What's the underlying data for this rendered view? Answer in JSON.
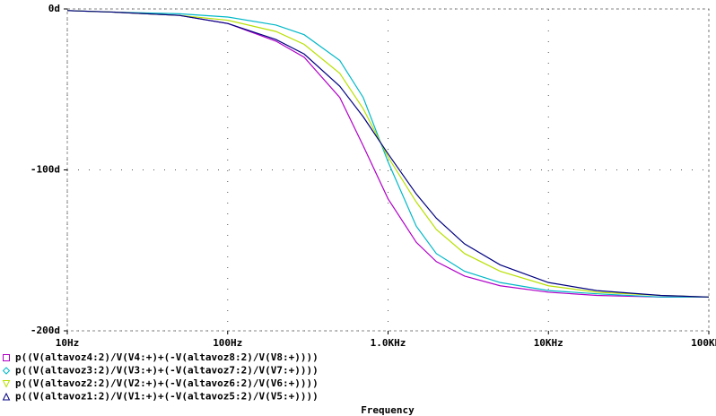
{
  "chart_data": {
    "type": "line",
    "x_label": "Frequency",
    "xscale": "log",
    "grid": true,
    "x": [
      10,
      20,
      50,
      100,
      200,
      300,
      500,
      700,
      1000,
      1500,
      2000,
      3000,
      5000,
      10000,
      20000,
      50000,
      100000
    ],
    "xlim": [
      10,
      100000
    ],
    "xticks": [
      {
        "value": 10,
        "label": "10Hz"
      },
      {
        "value": 100,
        "label": "100Hz"
      },
      {
        "value": 1000,
        "label": "1.0KHz"
      },
      {
        "value": 10000,
        "label": "10KHz"
      },
      {
        "value": 100000,
        "label": "100KHz"
      }
    ],
    "ylim": [
      -200,
      0
    ],
    "yticks": [
      {
        "value": 0,
        "label": "0d"
      },
      {
        "value": -100,
        "label": "-100d"
      },
      {
        "value": -200,
        "label": "-200d"
      }
    ],
    "series": [
      {
        "name": "p((V(altavoz4:2)/V(V4:+)+(-V(altavoz8:2)/V(V8:+))))",
        "color": "#b000c8",
        "marker": "square",
        "values": [
          -1,
          -2,
          -4,
          -9,
          -20,
          -30,
          -55,
          -85,
          -118,
          -145,
          -157,
          -166,
          -172,
          -176,
          -178,
          -179,
          -179
        ]
      },
      {
        "name": "p((V(altavoz3:2)/V(V3:+)+(-V(altavoz7:2)/V(V7:+))))",
        "color": "#00b8c8",
        "marker": "diamond",
        "values": [
          -1,
          -2,
          -3,
          -5,
          -10,
          -16,
          -32,
          -55,
          -95,
          -135,
          -152,
          -163,
          -170,
          -175,
          -177,
          -179,
          -179
        ]
      },
      {
        "name": "p((V(altavoz2:2)/V(V2:+)+(-V(altavoz6:2)/V(V6:+))))",
        "color": "#b8e000",
        "marker": "triangle-down",
        "values": [
          -1,
          -2,
          -4,
          -7,
          -14,
          -22,
          -40,
          -62,
          -92,
          -120,
          -137,
          -152,
          -163,
          -172,
          -176,
          -178,
          -179
        ]
      },
      {
        "name": "p((V(altavoz1:2)/V(V1:+)+(-V(altavoz5:2)/V(V5:+))))",
        "color": "#000080",
        "marker": "triangle-up",
        "values": [
          -1,
          -2,
          -4,
          -9,
          -19,
          -28,
          -48,
          -67,
          -90,
          -115,
          -130,
          -146,
          -159,
          -170,
          -175,
          -178,
          -179
        ]
      }
    ]
  }
}
